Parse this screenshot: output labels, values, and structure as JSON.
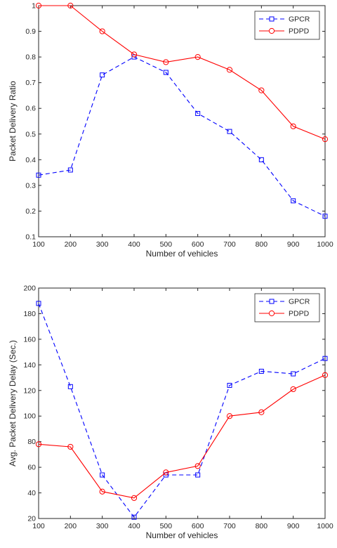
{
  "chart_data": [
    {
      "type": "line",
      "xlabel": "Number of vehicles",
      "ylabel": "Packet Delivery Ratio",
      "x": [
        100,
        200,
        300,
        400,
        500,
        600,
        700,
        800,
        900,
        1000
      ],
      "xlim": [
        100,
        1000
      ],
      "ylim": [
        0.1,
        1
      ],
      "xticks": [
        100,
        200,
        300,
        400,
        500,
        600,
        700,
        800,
        900,
        1000
      ],
      "yticks": [
        0.1,
        0.2,
        0.3,
        0.4,
        0.5,
        0.6,
        0.7,
        0.8,
        0.9,
        1
      ],
      "ytick_labels": [
        "0.1",
        "0.2",
        "0.3",
        "0.4",
        "0.5",
        "0.6",
        "0.7",
        "0.8",
        "0.9",
        "1"
      ],
      "grid": false,
      "legend_position": "top-right",
      "series": [
        {
          "name": "GPCR",
          "color": "#0000ff",
          "line_style": "dashed",
          "marker": "square",
          "values": [
            0.34,
            0.36,
            0.73,
            0.8,
            0.74,
            0.58,
            0.51,
            0.4,
            0.24,
            0.18
          ]
        },
        {
          "name": "PDPD",
          "color": "#ff0000",
          "line_style": "solid",
          "marker": "circle",
          "values": [
            1.0,
            1.0,
            0.9,
            0.81,
            0.78,
            0.8,
            0.75,
            0.67,
            0.53,
            0.48
          ]
        }
      ]
    },
    {
      "type": "line",
      "xlabel": "Number of vehicles",
      "ylabel": "Avg. Packet Delivery Delay (Sec.)",
      "x": [
        100,
        200,
        300,
        400,
        500,
        600,
        700,
        800,
        900,
        1000
      ],
      "xlim": [
        100,
        1000
      ],
      "ylim": [
        20,
        200
      ],
      "xticks": [
        100,
        200,
        300,
        400,
        500,
        600,
        700,
        800,
        900,
        1000
      ],
      "yticks": [
        20,
        40,
        60,
        80,
        100,
        120,
        140,
        160,
        180,
        200
      ],
      "ytick_labels": [
        "20",
        "40",
        "60",
        "80",
        "100",
        "120",
        "140",
        "160",
        "180",
        "200"
      ],
      "grid": false,
      "legend_position": "top-right",
      "series": [
        {
          "name": "GPCR",
          "color": "#0000ff",
          "line_style": "dashed",
          "marker": "square",
          "values": [
            188,
            123,
            54,
            21,
            54,
            54,
            124,
            135,
            133,
            145
          ]
        },
        {
          "name": "PDPD",
          "color": "#ff0000",
          "line_style": "solid",
          "marker": "circle",
          "values": [
            78,
            76,
            41,
            36,
            56,
            61,
            100,
            103,
            121,
            132
          ]
        }
      ]
    }
  ]
}
